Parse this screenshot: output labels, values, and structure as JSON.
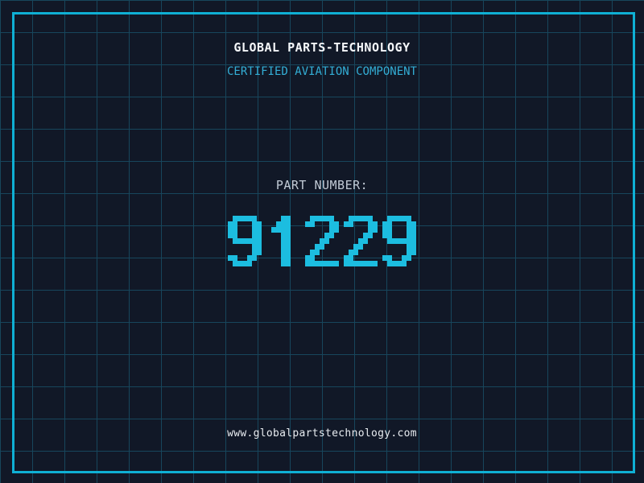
{
  "header": {
    "title": "GLOBAL PARTS-TECHNOLOGY",
    "subtitle": "CERTIFIED AVIATION COMPONENT"
  },
  "part": {
    "label": "PART NUMBER:",
    "number": "91229"
  },
  "footer": {
    "url": "www.globalpartstechnology.com"
  },
  "colors": {
    "background": "#111827",
    "grid_line": "#17465c",
    "frame": "#0fb0d4",
    "title": "#f5f7fa",
    "subtitle": "#33aed6",
    "label": "#c2cbd6",
    "digits": "#1cbde0",
    "url": "#e8ecf0"
  }
}
